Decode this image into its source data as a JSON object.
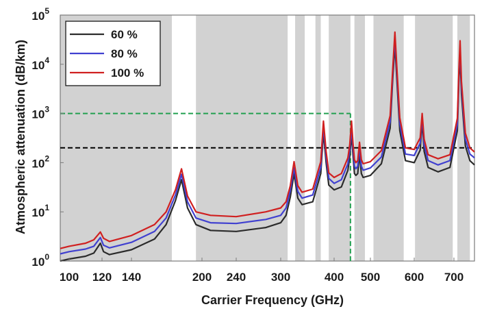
{
  "chart_data": {
    "type": "line",
    "xlabel": "Carrier Frequency (GHz)",
    "ylabel": "Atmospheric attenuation (dB/km)",
    "x_scale": "nonlinear",
    "y_scale": "log",
    "xlim": [
      90,
      790
    ],
    "ylim": [
      1,
      100000
    ],
    "grid": false,
    "legend_position": "top-left",
    "x_ticks": [
      {
        "value": 100,
        "label": "100"
      },
      {
        "value": 120,
        "label": "120"
      },
      {
        "value": 140,
        "label": "140"
      },
      {
        "value": 200,
        "label": "200"
      },
      {
        "value": 240,
        "label": "240"
      },
      {
        "value": 300,
        "label": "300"
      },
      {
        "value": 400,
        "label": "400"
      },
      {
        "value": 500,
        "label": "500"
      },
      {
        "value": 600,
        "label": "600"
      },
      {
        "value": 700,
        "label": "700"
      }
    ],
    "y_ticks": [
      {
        "value": 1,
        "base": "10",
        "exp": "0"
      },
      {
        "value": 10,
        "base": "10",
        "exp": "1"
      },
      {
        "value": 100,
        "base": "10",
        "exp": "2"
      },
      {
        "value": 1000,
        "base": "10",
        "exp": "3"
      },
      {
        "value": 10000,
        "base": "10",
        "exp": "4"
      },
      {
        "value": 100000,
        "base": "10",
        "exp": "5"
      }
    ],
    "shaded_bands": [
      [
        90,
        175
      ],
      [
        195,
        313
      ],
      [
        327,
        345
      ],
      [
        365,
        375
      ],
      [
        390,
        445
      ],
      [
        456,
        485
      ],
      [
        507,
        576
      ],
      [
        602,
        697
      ],
      [
        715,
        770
      ]
    ],
    "reference_lines": [
      {
        "type": "hline",
        "y": 200,
        "x_from": 90,
        "x_to": 790,
        "color": "#000000",
        "style": "dashed"
      },
      {
        "type": "hline",
        "y": 1000,
        "x_from": 90,
        "x_to": 445,
        "color": "#22a050",
        "style": "dashed"
      },
      {
        "type": "vline",
        "x": 445,
        "y_from": 1,
        "y_to": 1000,
        "color": "#22a050",
        "style": "dashed"
      }
    ],
    "series": [
      {
        "name": "60 %",
        "color": "#2b2b2b",
        "x": [
          90,
          100,
          110,
          115,
          119,
          121,
          125,
          140,
          160,
          170,
          178,
          183,
          188,
          195,
          210,
          240,
          280,
          300,
          310,
          318,
          325,
          332,
          340,
          360,
          375,
          380,
          385,
          390,
          400,
          420,
          438,
          443,
          448,
          452,
          456,
          460,
          465,
          470,
          475,
          480,
          500,
          525,
          545,
          551,
          556,
          561,
          567,
          580,
          600,
          615,
          620,
          625,
          635,
          660,
          690,
          715,
          722,
          727,
          733,
          750,
          770,
          790
        ],
        "y": [
          1.0,
          1.1,
          1.25,
          1.45,
          2.3,
          1.55,
          1.35,
          1.7,
          2.8,
          5.5,
          17,
          45,
          12,
          5.5,
          4.2,
          4.0,
          4.8,
          6.0,
          8.5,
          20,
          60,
          19,
          14,
          16,
          60,
          420,
          100,
          35,
          28,
          32,
          70,
          130,
          380,
          140,
          60,
          55,
          60,
          150,
          60,
          50,
          55,
          95,
          500,
          5000,
          25000,
          4000,
          450,
          110,
          100,
          180,
          700,
          170,
          80,
          65,
          80,
          450,
          5000,
          15000,
          2500,
          220,
          110,
          90
        ]
      },
      {
        "name": "80 %",
        "color": "#4040d0",
        "x": [
          90,
          100,
          110,
          115,
          119,
          121,
          125,
          140,
          160,
          170,
          178,
          183,
          188,
          195,
          210,
          240,
          280,
          300,
          310,
          318,
          325,
          332,
          340,
          360,
          375,
          380,
          385,
          390,
          400,
          420,
          438,
          443,
          448,
          452,
          456,
          460,
          465,
          470,
          475,
          480,
          500,
          525,
          545,
          551,
          556,
          561,
          567,
          580,
          600,
          615,
          620,
          625,
          635,
          660,
          690,
          715,
          722,
          727,
          733,
          750,
          770,
          790
        ],
        "y": [
          1.4,
          1.55,
          1.75,
          2.0,
          3.0,
          2.1,
          1.85,
          2.4,
          4.0,
          7.5,
          22,
          58,
          16,
          7.5,
          6.0,
          5.8,
          7.0,
          8.5,
          12,
          27,
          78,
          26,
          19,
          22,
          80,
          560,
          135,
          48,
          38,
          45,
          95,
          175,
          520,
          190,
          85,
          75,
          85,
          200,
          85,
          70,
          78,
          130,
          680,
          6500,
          35000,
          5500,
          620,
          150,
          140,
          250,
          850,
          230,
          110,
          90,
          110,
          600,
          6500,
          22000,
          3500,
          300,
          150,
          125
        ]
      },
      {
        "name": "100 %",
        "color": "#d02020",
        "x": [
          90,
          100,
          110,
          115,
          119,
          121,
          125,
          140,
          160,
          170,
          178,
          183,
          188,
          195,
          210,
          240,
          280,
          300,
          310,
          318,
          325,
          332,
          340,
          360,
          375,
          380,
          385,
          390,
          400,
          420,
          438,
          443,
          448,
          452,
          456,
          460,
          465,
          470,
          475,
          480,
          500,
          525,
          545,
          551,
          556,
          561,
          567,
          580,
          600,
          615,
          620,
          625,
          635,
          660,
          690,
          715,
          722,
          727,
          733,
          750,
          770,
          790
        ],
        "y": [
          1.8,
          2.0,
          2.3,
          2.7,
          3.9,
          2.9,
          2.5,
          3.3,
          5.5,
          10,
          28,
          75,
          21,
          10,
          8.5,
          8.0,
          10,
          12,
          16,
          34,
          105,
          34,
          25,
          29,
          105,
          700,
          170,
          62,
          50,
          60,
          125,
          230,
          700,
          250,
          115,
          100,
          110,
          260,
          115,
          95,
          105,
          175,
          900,
          8000,
          45000,
          7000,
          820,
          200,
          185,
          320,
          1000,
          300,
          145,
          120,
          145,
          800,
          8000,
          30000,
          4500,
          400,
          200,
          165
        ]
      }
    ]
  }
}
